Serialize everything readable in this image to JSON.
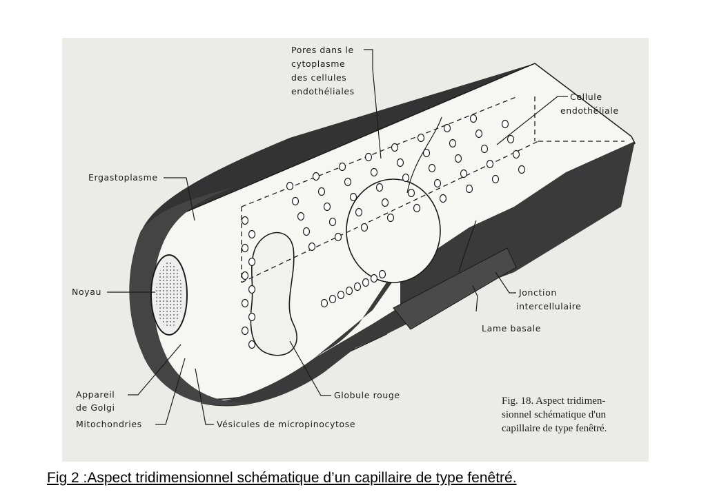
{
  "labels": {
    "pores": [
      "Pores dans le",
      "cytoplasme",
      "des cellules",
      "endothéliales"
    ],
    "cellule": [
      "Cellule",
      "endothéliale"
    ],
    "ergastoplasme": "Ergastoplasme",
    "noyau": "Noyau",
    "jonction": [
      "Jonction",
      "intercellulaire"
    ],
    "lame": "Lame basale",
    "appareil": [
      "Appareil",
      "de Golgi"
    ],
    "mitochondries": "Mitochondries",
    "vesicules": "Vésicules de micropinocytose",
    "globule": "Globule rouge"
  },
  "scan_caption": [
    "Fig. 18. Aspect tridimen-",
    "sionnel schématique d'un",
    "capillaire de type fenêtré."
  ],
  "figure_caption": "Fig 2 :Aspect tridimensionnel schématique d’un capillaire de type fenêtré.",
  "colors": {
    "paper": "#e9e9e6",
    "ink": "#1a1a1a",
    "wall": "#3a3a3a",
    "cytoplasm": "#f7f7f5"
  }
}
